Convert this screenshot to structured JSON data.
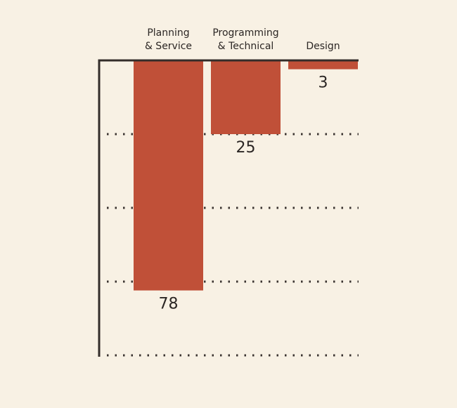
{
  "chart_data": {
    "type": "bar",
    "orientation": "vertical-downward",
    "categories": [
      [
        "Planning",
        "& Service"
      ],
      [
        "Programming",
        "& Technical"
      ],
      [
        "Design"
      ]
    ],
    "values": [
      78,
      25,
      3
    ],
    "value_labels": [
      "78",
      "25",
      "3"
    ],
    "title": "",
    "xlabel": "",
    "ylabel": "",
    "ylim": [
      0,
      100
    ],
    "gridlines": [
      25,
      50,
      75,
      100
    ],
    "grid": true,
    "grid_style": "dotted",
    "category_axis_position": "top",
    "legend": "none",
    "colors": {
      "bar": "#c05038",
      "axis": "#332d2a",
      "grid": "#3a3330",
      "text": "#2b2624",
      "background": "#f8f1e4"
    }
  }
}
